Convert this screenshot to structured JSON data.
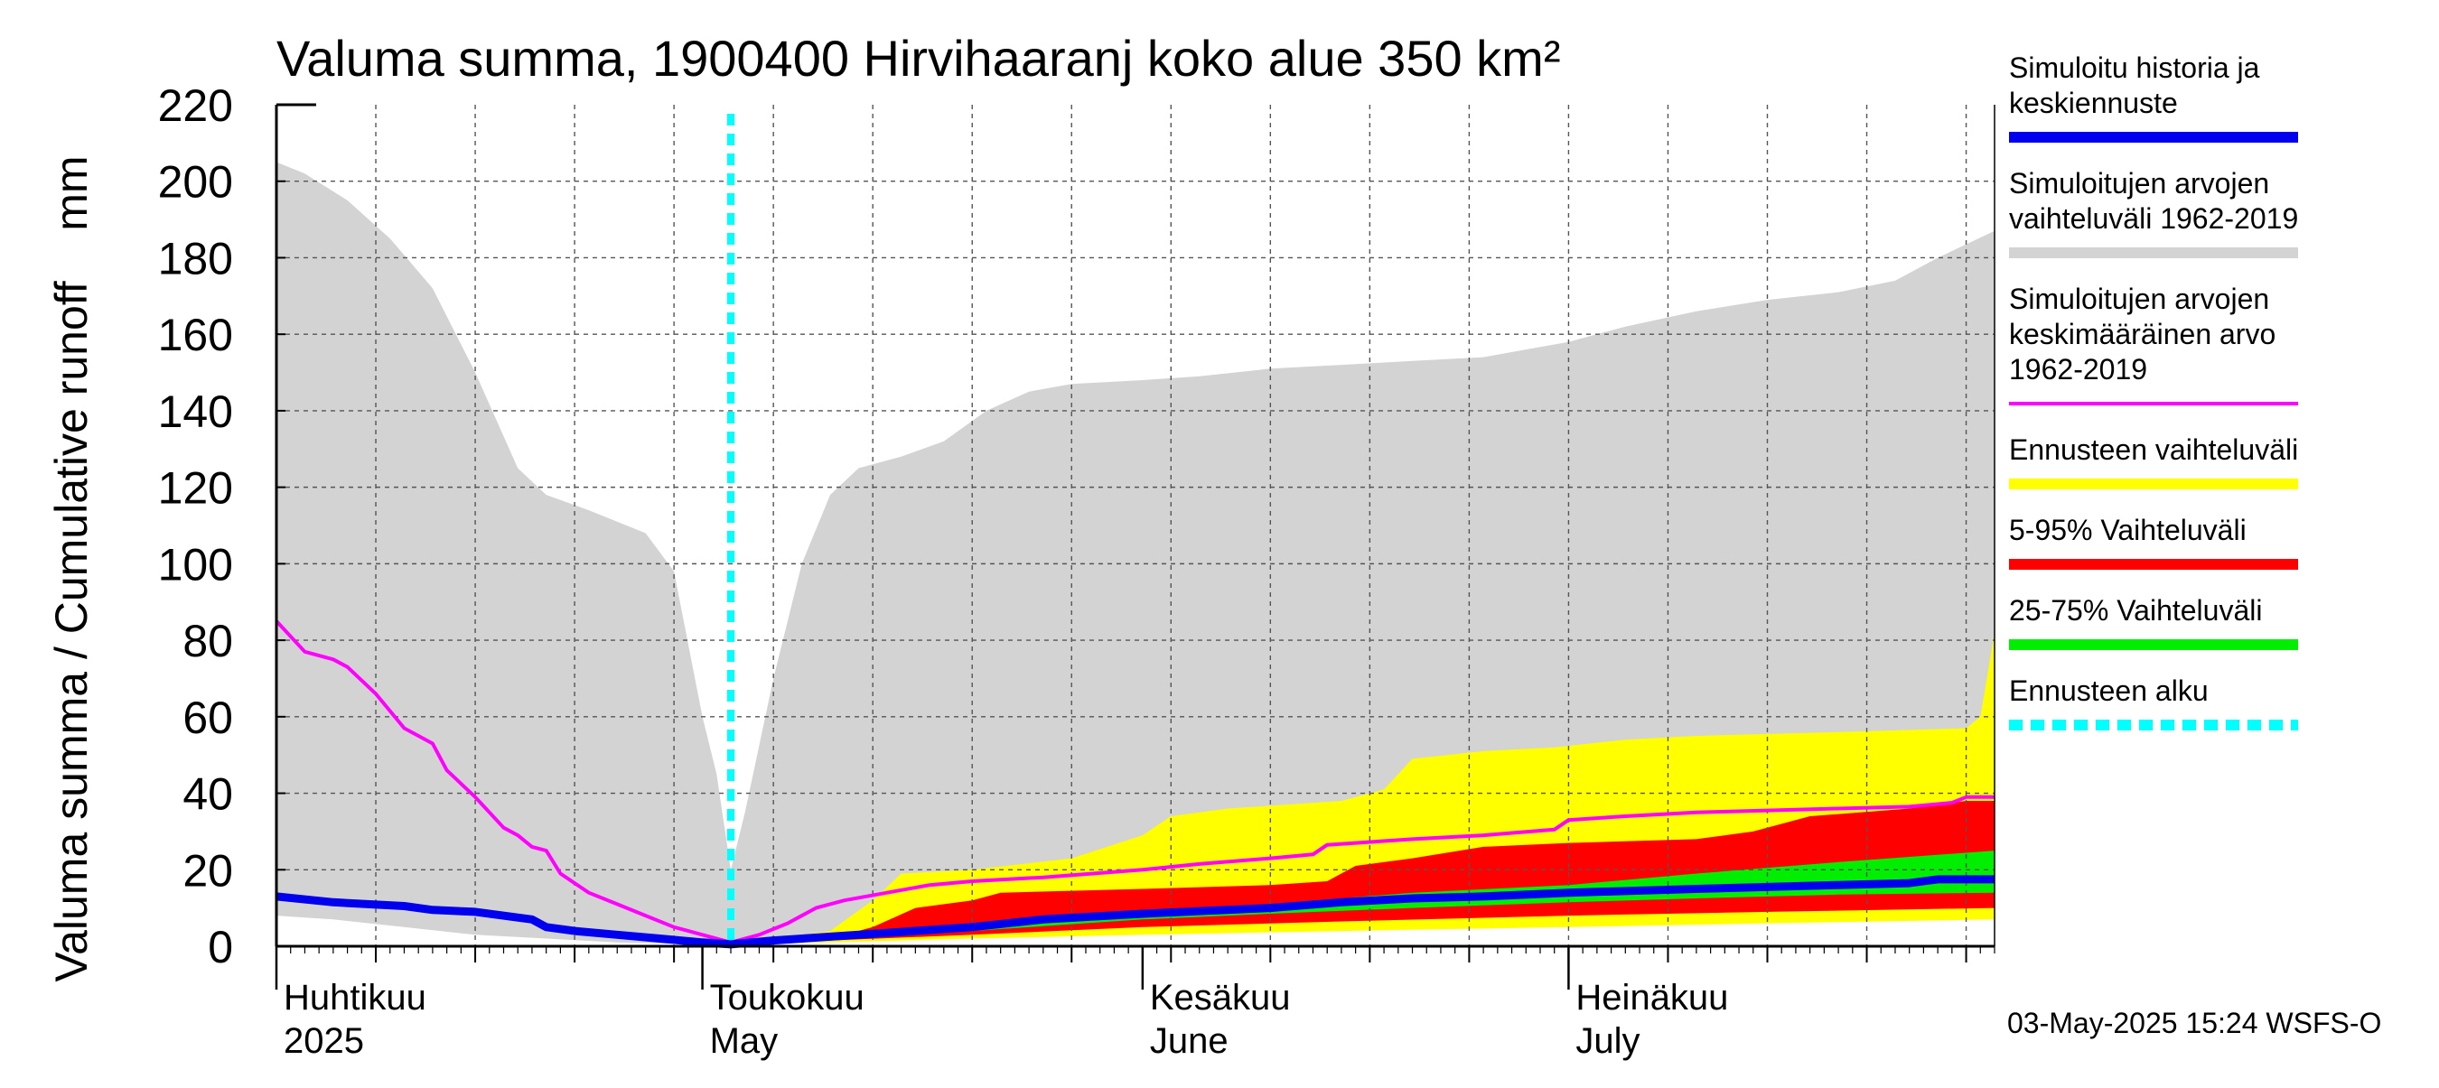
{
  "chart_data": {
    "type": "area",
    "title": "Valuma summa, 1900400 Hirvihaaranj koko alue 350 km²",
    "ylabel": "Valuma summa / Cumulative runoff    mm",
    "ylim": [
      0,
      220
    ],
    "yticks": [
      0,
      20,
      40,
      60,
      80,
      100,
      120,
      140,
      160,
      180,
      200,
      220
    ],
    "xlim": [
      "2025-04-01",
      "2025-07-31"
    ],
    "grid": true,
    "legend_position": "right",
    "forecast_start": "2025-05-03",
    "month_ticks": [
      {
        "date": "2025-04-01",
        "fi": "Huhtikuu",
        "en": "2025"
      },
      {
        "date": "2025-05-01",
        "fi": "Toukokuu",
        "en": "May"
      },
      {
        "date": "2025-06-01",
        "fi": "Kesäkuu",
        "en": "June"
      },
      {
        "date": "2025-07-01",
        "fi": "Heinäkuu",
        "en": "July"
      }
    ],
    "footer": "03-May-2025 15:24 WSFS-O",
    "colors": {
      "history_range": "#d3d3d3",
      "history_mean": "#ff00ff",
      "history_sim": "#0000ee",
      "forecast_range": "#ffff00",
      "band_5_95": "#ff0000",
      "band_25_75": "#00ee00",
      "forecast_start": "#00ffff"
    },
    "legend": [
      {
        "key": "sim",
        "lines": [
          "Simuloitu historia ja",
          "keskiennuste"
        ],
        "color": "#0000ee",
        "style": "solid"
      },
      {
        "key": "range",
        "lines": [
          "Simuloitujen arvojen",
          "vaihteluväli 1962-2019"
        ],
        "color": "#d3d3d3",
        "style": "solid"
      },
      {
        "key": "mean",
        "lines": [
          "Simuloitujen arvojen",
          "keskimääräinen arvo",
          "   1962-2019"
        ],
        "color": "#ff00ff",
        "style": "thin"
      },
      {
        "key": "fc_range",
        "lines": [
          "Ennusteen vaihteluväli"
        ],
        "color": "#ffff00",
        "style": "solid"
      },
      {
        "key": "p5_95",
        "lines": [
          "5-95% Vaihteluväli"
        ],
        "color": "#ff0000",
        "style": "solid"
      },
      {
        "key": "p25_75",
        "lines": [
          "25-75% Vaihteluväli"
        ],
        "color": "#00ee00",
        "style": "solid"
      },
      {
        "key": "fc_start",
        "lines": [
          "Ennusteen alku"
        ],
        "color": "#00ffff",
        "style": "dashed"
      }
    ],
    "series": {
      "history_range_upper": [
        [
          "2025-04-01",
          205
        ],
        [
          "2025-04-03",
          202
        ],
        [
          "2025-04-06",
          195
        ],
        [
          "2025-04-09",
          185
        ],
        [
          "2025-04-12",
          172
        ],
        [
          "2025-04-15",
          150
        ],
        [
          "2025-04-18",
          125
        ],
        [
          "2025-04-20",
          118
        ],
        [
          "2025-04-23",
          114
        ],
        [
          "2025-04-27",
          108
        ],
        [
          "2025-04-29",
          98
        ],
        [
          "2025-05-01",
          60
        ],
        [
          "2025-05-02",
          45
        ],
        [
          "2025-05-03",
          20
        ],
        [
          "2025-05-04",
          35
        ],
        [
          "2025-05-06",
          70
        ],
        [
          "2025-05-08",
          100
        ],
        [
          "2025-05-10",
          118
        ],
        [
          "2025-05-12",
          125
        ],
        [
          "2025-05-15",
          128
        ],
        [
          "2025-05-18",
          132
        ],
        [
          "2025-05-21",
          140
        ],
        [
          "2025-05-24",
          145
        ],
        [
          "2025-05-27",
          147
        ],
        [
          "2025-06-01",
          148
        ],
        [
          "2025-06-05",
          149
        ],
        [
          "2025-06-10",
          151
        ],
        [
          "2025-06-15",
          152
        ],
        [
          "2025-06-20",
          153
        ],
        [
          "2025-06-25",
          154
        ],
        [
          "2025-06-28",
          156
        ],
        [
          "2025-07-01",
          158
        ],
        [
          "2025-07-05",
          162
        ],
        [
          "2025-07-10",
          166
        ],
        [
          "2025-07-15",
          169
        ],
        [
          "2025-07-20",
          171
        ],
        [
          "2025-07-24",
          174
        ],
        [
          "2025-07-27",
          180
        ],
        [
          "2025-07-31",
          187
        ]
      ],
      "history_range_lower": [
        [
          "2025-04-01",
          8
        ],
        [
          "2025-04-05",
          7
        ],
        [
          "2025-04-10",
          5
        ],
        [
          "2025-04-15",
          3
        ],
        [
          "2025-04-20",
          2
        ],
        [
          "2025-04-25",
          1
        ],
        [
          "2025-05-01",
          0.5
        ],
        [
          "2025-05-03",
          0
        ],
        [
          "2025-05-06",
          1
        ],
        [
          "2025-05-10",
          2
        ],
        [
          "2025-05-15",
          3
        ],
        [
          "2025-05-20",
          4
        ],
        [
          "2025-05-25",
          5
        ],
        [
          "2025-06-01",
          6
        ],
        [
          "2025-06-10",
          6.5
        ],
        [
          "2025-06-20",
          7
        ],
        [
          "2025-07-01",
          8
        ],
        [
          "2025-07-10",
          8.5
        ],
        [
          "2025-07-20",
          9
        ],
        [
          "2025-07-31",
          10
        ]
      ],
      "history_mean": [
        [
          "2025-04-01",
          85
        ],
        [
          "2025-04-03",
          77
        ],
        [
          "2025-04-05",
          75
        ],
        [
          "2025-04-06",
          73
        ],
        [
          "2025-04-08",
          66
        ],
        [
          "2025-04-10",
          57
        ],
        [
          "2025-04-12",
          53
        ],
        [
          "2025-04-13",
          46
        ],
        [
          "2025-04-15",
          39
        ],
        [
          "2025-04-17",
          31
        ],
        [
          "2025-04-18",
          29
        ],
        [
          "2025-04-19",
          26
        ],
        [
          "2025-04-20",
          25
        ],
        [
          "2025-04-21",
          19
        ],
        [
          "2025-04-23",
          14
        ],
        [
          "2025-04-25",
          11
        ],
        [
          "2025-04-27",
          8
        ],
        [
          "2025-04-29",
          5
        ],
        [
          "2025-05-01",
          3
        ],
        [
          "2025-05-03",
          1
        ],
        [
          "2025-05-05",
          3
        ],
        [
          "2025-05-07",
          6
        ],
        [
          "2025-05-09",
          10
        ],
        [
          "2025-05-11",
          12
        ],
        [
          "2025-05-14",
          14
        ],
        [
          "2025-05-17",
          16
        ],
        [
          "2025-05-20",
          17
        ],
        [
          "2025-05-25",
          18
        ],
        [
          "2025-06-01",
          20
        ],
        [
          "2025-06-05",
          21.5
        ],
        [
          "2025-06-10",
          23
        ],
        [
          "2025-06-13",
          24
        ],
        [
          "2025-06-14",
          26.5
        ],
        [
          "2025-06-20",
          28
        ],
        [
          "2025-06-25",
          29
        ],
        [
          "2025-06-30",
          30.5
        ],
        [
          "2025-07-01",
          33
        ],
        [
          "2025-07-05",
          34
        ],
        [
          "2025-07-10",
          35
        ],
        [
          "2025-07-15",
          35.5
        ],
        [
          "2025-07-20",
          36
        ],
        [
          "2025-07-25",
          36.5
        ],
        [
          "2025-07-28",
          37.5
        ],
        [
          "2025-07-29",
          39
        ],
        [
          "2025-07-31",
          39
        ]
      ],
      "history_sim": [
        [
          "2025-04-01",
          13
        ],
        [
          "2025-04-05",
          11.5
        ],
        [
          "2025-04-10",
          10.5
        ],
        [
          "2025-04-12",
          9.5
        ],
        [
          "2025-04-15",
          9
        ],
        [
          "2025-04-19",
          7
        ],
        [
          "2025-04-20",
          5
        ],
        [
          "2025-04-22",
          4
        ],
        [
          "2025-04-25",
          3
        ],
        [
          "2025-04-28",
          2
        ],
        [
          "2025-05-01",
          1
        ],
        [
          "2025-05-03",
          0.5
        ],
        [
          "2025-05-06",
          1.5
        ],
        [
          "2025-05-10",
          2.5
        ],
        [
          "2025-05-14",
          3.5
        ],
        [
          "2025-05-20",
          5
        ],
        [
          "2025-05-25",
          7
        ],
        [
          "2025-06-01",
          8.5
        ],
        [
          "2025-06-10",
          10
        ],
        [
          "2025-06-15",
          11.5
        ],
        [
          "2025-06-20",
          12.5
        ],
        [
          "2025-06-25",
          13
        ],
        [
          "2025-07-01",
          14
        ],
        [
          "2025-07-10",
          15
        ],
        [
          "2025-07-20",
          16
        ],
        [
          "2025-07-25",
          16.5
        ],
        [
          "2025-07-27",
          17.5
        ],
        [
          "2025-07-31",
          17.5
        ]
      ],
      "forecast_range_upper": [
        [
          "2025-05-03",
          0.5
        ],
        [
          "2025-05-10",
          4
        ],
        [
          "2025-05-13",
          12
        ],
        [
          "2025-05-15",
          19
        ],
        [
          "2025-05-20",
          20
        ],
        [
          "2025-05-27",
          23
        ],
        [
          "2025-06-01",
          29
        ],
        [
          "2025-06-03",
          34
        ],
        [
          "2025-06-07",
          36
        ],
        [
          "2025-06-15",
          38
        ],
        [
          "2025-06-18",
          41
        ],
        [
          "2025-06-20",
          49
        ],
        [
          "2025-06-25",
          51
        ],
        [
          "2025-06-30",
          52
        ],
        [
          "2025-07-05",
          54
        ],
        [
          "2025-07-10",
          55
        ],
        [
          "2025-07-20",
          56
        ],
        [
          "2025-07-29",
          57
        ],
        [
          "2025-07-30",
          60
        ],
        [
          "2025-07-31",
          82
        ]
      ],
      "forecast_range_lower": [
        [
          "2025-05-03",
          0.5
        ],
        [
          "2025-05-10",
          1
        ],
        [
          "2025-05-20",
          2
        ],
        [
          "2025-06-01",
          3
        ],
        [
          "2025-06-15",
          4
        ],
        [
          "2025-07-01",
          5
        ],
        [
          "2025-07-15",
          6
        ],
        [
          "2025-07-31",
          7
        ]
      ],
      "band_5_95_upper": [
        [
          "2025-05-03",
          0.5
        ],
        [
          "2025-05-10",
          2
        ],
        [
          "2025-05-13",
          5
        ],
        [
          "2025-05-16",
          10
        ],
        [
          "2025-05-20",
          12
        ],
        [
          "2025-05-22",
          14
        ],
        [
          "2025-06-01",
          15
        ],
        [
          "2025-06-10",
          16
        ],
        [
          "2025-06-14",
          17
        ],
        [
          "2025-06-16",
          21
        ],
        [
          "2025-06-20",
          23
        ],
        [
          "2025-06-25",
          26
        ],
        [
          "2025-07-01",
          27
        ],
        [
          "2025-07-10",
          28
        ],
        [
          "2025-07-14",
          30
        ],
        [
          "2025-07-18",
          34
        ],
        [
          "2025-07-25",
          36
        ],
        [
          "2025-07-29",
          38
        ],
        [
          "2025-07-31",
          38
        ]
      ],
      "band_5_95_lower": [
        [
          "2025-05-03",
          0.5
        ],
        [
          "2025-05-10",
          1.5
        ],
        [
          "2025-05-20",
          3
        ],
        [
          "2025-06-01",
          5
        ],
        [
          "2025-06-15",
          6.5
        ],
        [
          "2025-07-01",
          8
        ],
        [
          "2025-07-15",
          9
        ],
        [
          "2025-07-31",
          10
        ]
      ],
      "band_25_75_upper": [
        [
          "2025-05-03",
          0.5
        ],
        [
          "2025-05-10",
          2
        ],
        [
          "2025-05-20",
          5
        ],
        [
          "2025-06-01",
          9
        ],
        [
          "2025-06-10",
          11
        ],
        [
          "2025-06-20",
          14
        ],
        [
          "2025-07-01",
          16
        ],
        [
          "2025-07-10",
          19
        ],
        [
          "2025-07-20",
          22
        ],
        [
          "2025-07-31",
          25
        ]
      ],
      "band_25_75_lower": [
        [
          "2025-05-03",
          0.5
        ],
        [
          "2025-05-10",
          1.5
        ],
        [
          "2025-05-20",
          4
        ],
        [
          "2025-06-01",
          7
        ],
        [
          "2025-06-10",
          8.5
        ],
        [
          "2025-06-20",
          10
        ],
        [
          "2025-07-01",
          11.5
        ],
        [
          "2025-07-10",
          12.5
        ],
        [
          "2025-07-20",
          13.5
        ],
        [
          "2025-07-31",
          14
        ]
      ]
    }
  }
}
